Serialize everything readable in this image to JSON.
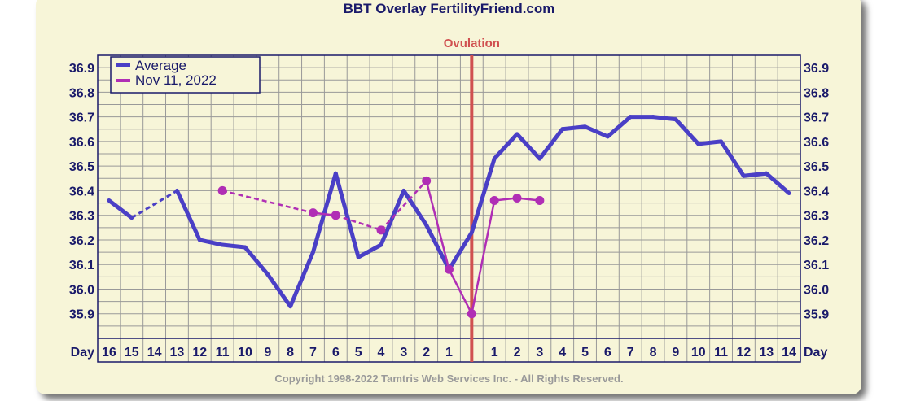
{
  "chart_data": {
    "type": "line",
    "title": "BBT Overlay FertilityFriend.com",
    "x": [
      "16",
      "15",
      "14",
      "13",
      "12",
      "11",
      "10",
      "9",
      "8",
      "7",
      "6",
      "5",
      "4",
      "3",
      "2",
      "1",
      "",
      "1",
      "2",
      "3",
      "4",
      "5",
      "6",
      "7",
      "8",
      "9",
      "10",
      "11",
      "12",
      "13",
      "14"
    ],
    "axis_end_label": "Day",
    "ylim": [
      35.8,
      36.95
    ],
    "yticks": [
      "35.9",
      "36.0",
      "36.1",
      "36.2",
      "36.3",
      "36.4",
      "36.5",
      "36.6",
      "36.7",
      "36.8",
      "36.9"
    ],
    "grid": true,
    "legend_position": "top-left",
    "annotation": {
      "label": "Ovulation",
      "x_index": 16
    },
    "series": [
      {
        "name": "Average",
        "color": "#4a3fc6",
        "values": [
          36.36,
          36.29,
          36.34,
          36.4,
          36.2,
          36.18,
          36.17,
          36.06,
          35.93,
          36.15,
          36.47,
          36.13,
          36.18,
          36.4,
          36.26,
          36.08,
          36.23,
          36.53,
          36.63,
          36.53,
          36.65,
          36.66,
          36.62,
          36.7,
          36.7,
          36.69,
          36.59,
          36.6,
          36.46,
          36.47,
          36.39
        ],
        "dashed_segments": [
          [
            1,
            3
          ]
        ]
      },
      {
        "name": "Nov 11, 2022",
        "color": "#b02eb5",
        "points": [
          [
            5,
            36.4
          ],
          [
            9,
            36.31
          ],
          [
            10,
            36.3
          ],
          [
            12,
            36.24
          ],
          [
            14,
            36.44
          ],
          [
            15,
            36.08
          ],
          [
            16,
            35.9
          ],
          [
            17,
            36.36
          ],
          [
            18,
            36.37
          ],
          [
            19,
            36.36
          ]
        ],
        "dashed_segments": [
          [
            5,
            9
          ],
          [
            10,
            12
          ],
          [
            12,
            14
          ]
        ]
      }
    ]
  },
  "copyright": "Copyright 1998-2022 Tamtris Web Services Inc. - All Rights Reserved.",
  "colors": {
    "background": "#f7f5d8",
    "plot_border": "#1a1a6a",
    "grid": "#999999",
    "ovulation_line": "#d05050",
    "text": "#1a1a6a"
  }
}
